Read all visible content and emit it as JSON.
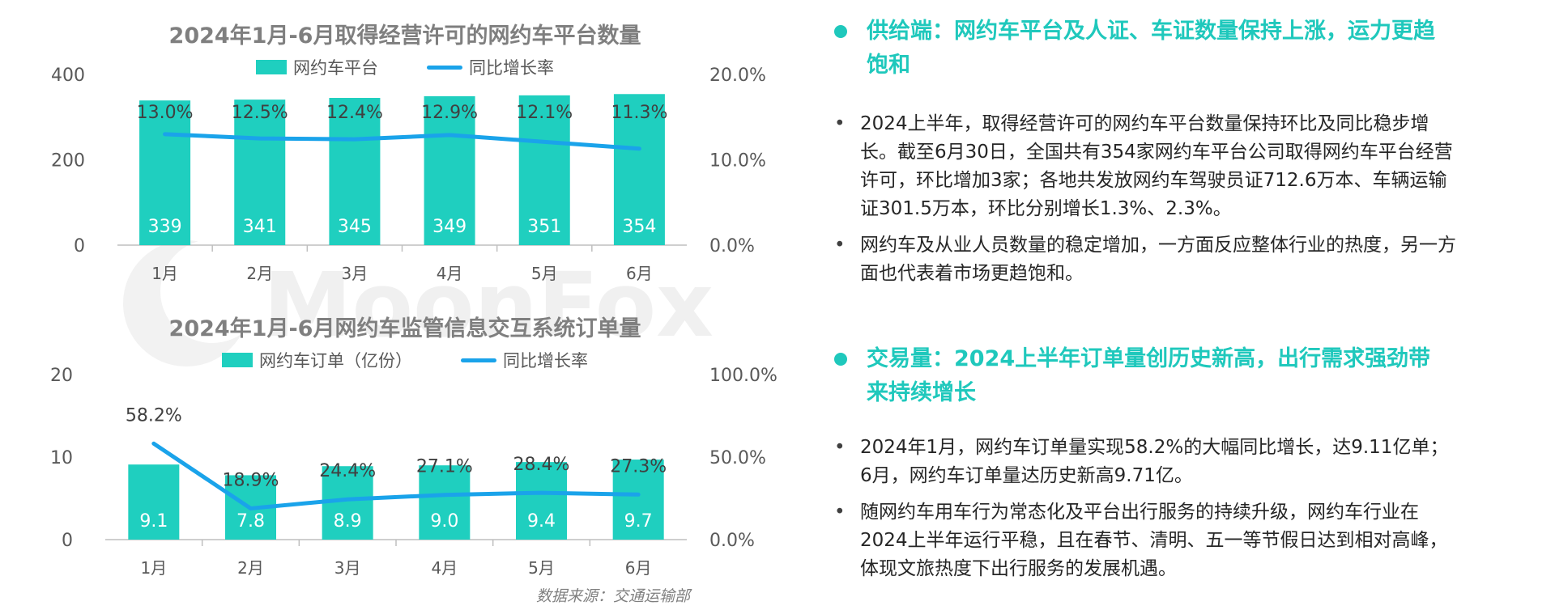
{
  "colors": {
    "bar": "#1fcfbf",
    "line": "#1aa3ea",
    "accent": "#1fc8bc",
    "axis": "#595959"
  },
  "chart_data": [
    {
      "type": "bar",
      "title": "2024年1月-6月取得经营许可的网约车平台数量",
      "categories": [
        "1月",
        "2月",
        "3月",
        "4月",
        "5月",
        "6月"
      ],
      "y_ticks": [
        "400",
        "200",
        "0"
      ],
      "y2_ticks": [
        "20.0%",
        "10.0%",
        "0.0%"
      ],
      "ylim": [
        0,
        400
      ],
      "y2lim": [
        0,
        20
      ],
      "series": [
        {
          "name": "网约车平台",
          "kind": "bar",
          "values": [
            339,
            341,
            345,
            349,
            351,
            354
          ],
          "labels": [
            "339",
            "341",
            "345",
            "349",
            "351",
            "354"
          ]
        },
        {
          "name": "同比增长率",
          "kind": "line",
          "axis": "right",
          "values": [
            13.0,
            12.5,
            12.4,
            12.9,
            12.1,
            11.3
          ],
          "labels": [
            "13.0%",
            "12.5%",
            "12.4%",
            "12.9%",
            "12.1%",
            "11.3%"
          ]
        }
      ],
      "legend": "top-center"
    },
    {
      "type": "bar",
      "title": "2024年1月-6月网约车监管信息交互系统订单量",
      "categories": [
        "1月",
        "2月",
        "3月",
        "4月",
        "5月",
        "6月"
      ],
      "y_ticks": [
        "20",
        "10",
        "0"
      ],
      "y2_ticks": [
        "100.0%",
        "50.0%",
        "0.0%"
      ],
      "ylim": [
        0,
        20
      ],
      "y2lim": [
        0,
        100
      ],
      "series": [
        {
          "name": "网约车订单（亿份）",
          "kind": "bar",
          "values": [
            9.1,
            7.8,
            8.9,
            9.0,
            9.4,
            9.7
          ],
          "labels": [
            "9.1",
            "7.8",
            "8.9",
            "9.0",
            "9.4",
            "9.7"
          ]
        },
        {
          "name": "同比增长率",
          "kind": "line",
          "axis": "right",
          "values": [
            58.2,
            18.9,
            24.4,
            27.1,
            28.4,
            27.3
          ],
          "labels": [
            "58.2%",
            "18.9%",
            "24.4%",
            "27.1%",
            "28.4%",
            "27.3%"
          ]
        }
      ],
      "legend": "top-center"
    }
  ],
  "source": "数据来源：交通运输部",
  "watermark": "MoonFox",
  "right": {
    "section1": {
      "heading": "供给端：网约车平台及人证、车证数量保持上涨，运力更趋饱和",
      "bullets": [
        "2024上半年，取得经营许可的网约车平台数量保持环比及同比稳步增长。截至6月30日，全国共有354家网约车平台公司取得网约车平台经营许可，环比增加3家；各地共发放网约车驾驶员证712.6万本、车辆运输证301.5万本，环比分别增长1.3%、2.3%。",
        "网约车及从业人员数量的稳定增加，一方面反应整体行业的热度，另一方面也代表着市场更趋饱和。"
      ]
    },
    "section2": {
      "heading": "交易量：2024上半年订单量创历史新高，出行需求强劲带来持续增长",
      "bullets": [
        "2024年1月，网约车订单量实现58.2%的大幅同比增长，达9.11亿单；6月，网约车订单量达历史新高9.71亿。",
        "随网约车用车行为常态化及平台出行服务的持续升级，网约车行业在2024上半年运行平稳，且在春节、清明、五一等节假日达到相对高峰，体现文旅热度下出行服务的发展机遇。"
      ]
    }
  }
}
